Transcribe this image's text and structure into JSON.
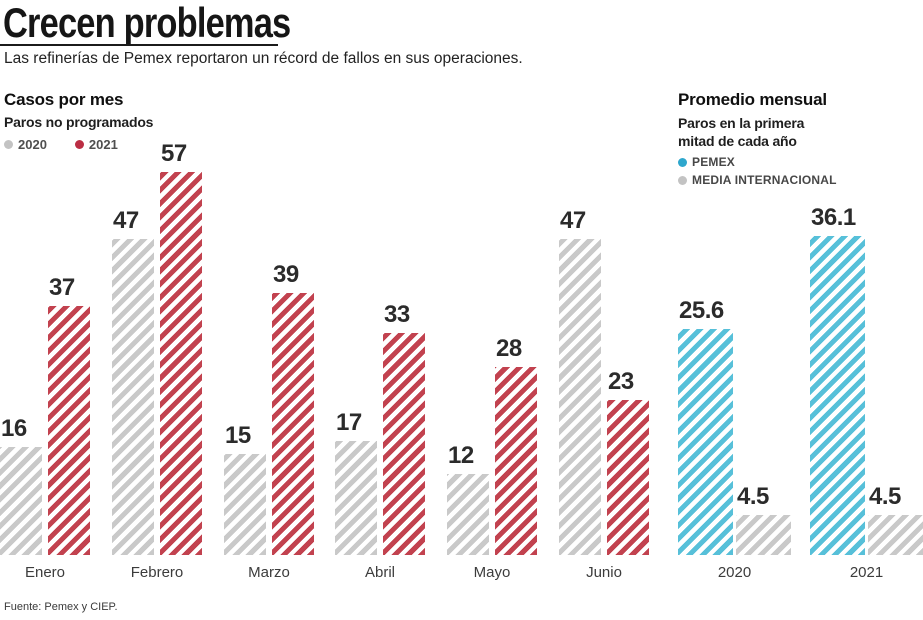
{
  "header": {
    "title": "Crecen problemas",
    "subtitle": "Las refinerías de Pemex reportaron un récord de fallos en sus operaciones."
  },
  "source": "Fuente: Pemex y CIEP.",
  "colors": {
    "gray": "#c9c9c9",
    "red": "#c2424f",
    "blue": "#57c0d9",
    "gray_dot": "#c3c3c3",
    "red_dot": "#bb2e44",
    "blue_dot": "#2ea7cd"
  },
  "chart_data": [
    {
      "id": "left",
      "type": "bar",
      "title": "Casos por mes",
      "subtitle": "Paros no programados",
      "legend": [
        {
          "name": "2020",
          "color": "gray",
          "dot": "gray_dot"
        },
        {
          "name": "2021",
          "color": "red",
          "dot": "red_dot"
        }
      ],
      "categories": [
        "Enero",
        "Febrero",
        "Marzo",
        "Abril",
        "Mayo",
        "Junio"
      ],
      "series": [
        {
          "name": "2020",
          "values": [
            16,
            47,
            15,
            17,
            12,
            47
          ]
        },
        {
          "name": "2021",
          "values": [
            37,
            57,
            39,
            33,
            28,
            23
          ]
        }
      ],
      "ylim": [
        0,
        57
      ],
      "grid": false,
      "legend_position": "top-left"
    },
    {
      "id": "right",
      "type": "bar",
      "title": "Promedio mensual",
      "subtitle": "Paros en la primera mitad de cada año",
      "legend": [
        {
          "name": "PEMEX",
          "color": "blue",
          "dot": "blue_dot"
        },
        {
          "name": "MEDIA INTERNACIONAL",
          "color": "gray",
          "dot": "gray_dot"
        }
      ],
      "categories": [
        "2020",
        "2021"
      ],
      "series": [
        {
          "name": "PEMEX",
          "values": [
            25.6,
            36.1
          ]
        },
        {
          "name": "MEDIA INTERNACIONAL",
          "values": [
            4.5,
            4.5
          ]
        }
      ],
      "ylim": [
        0,
        36.1
      ],
      "grid": false,
      "legend_position": "top-left"
    }
  ]
}
